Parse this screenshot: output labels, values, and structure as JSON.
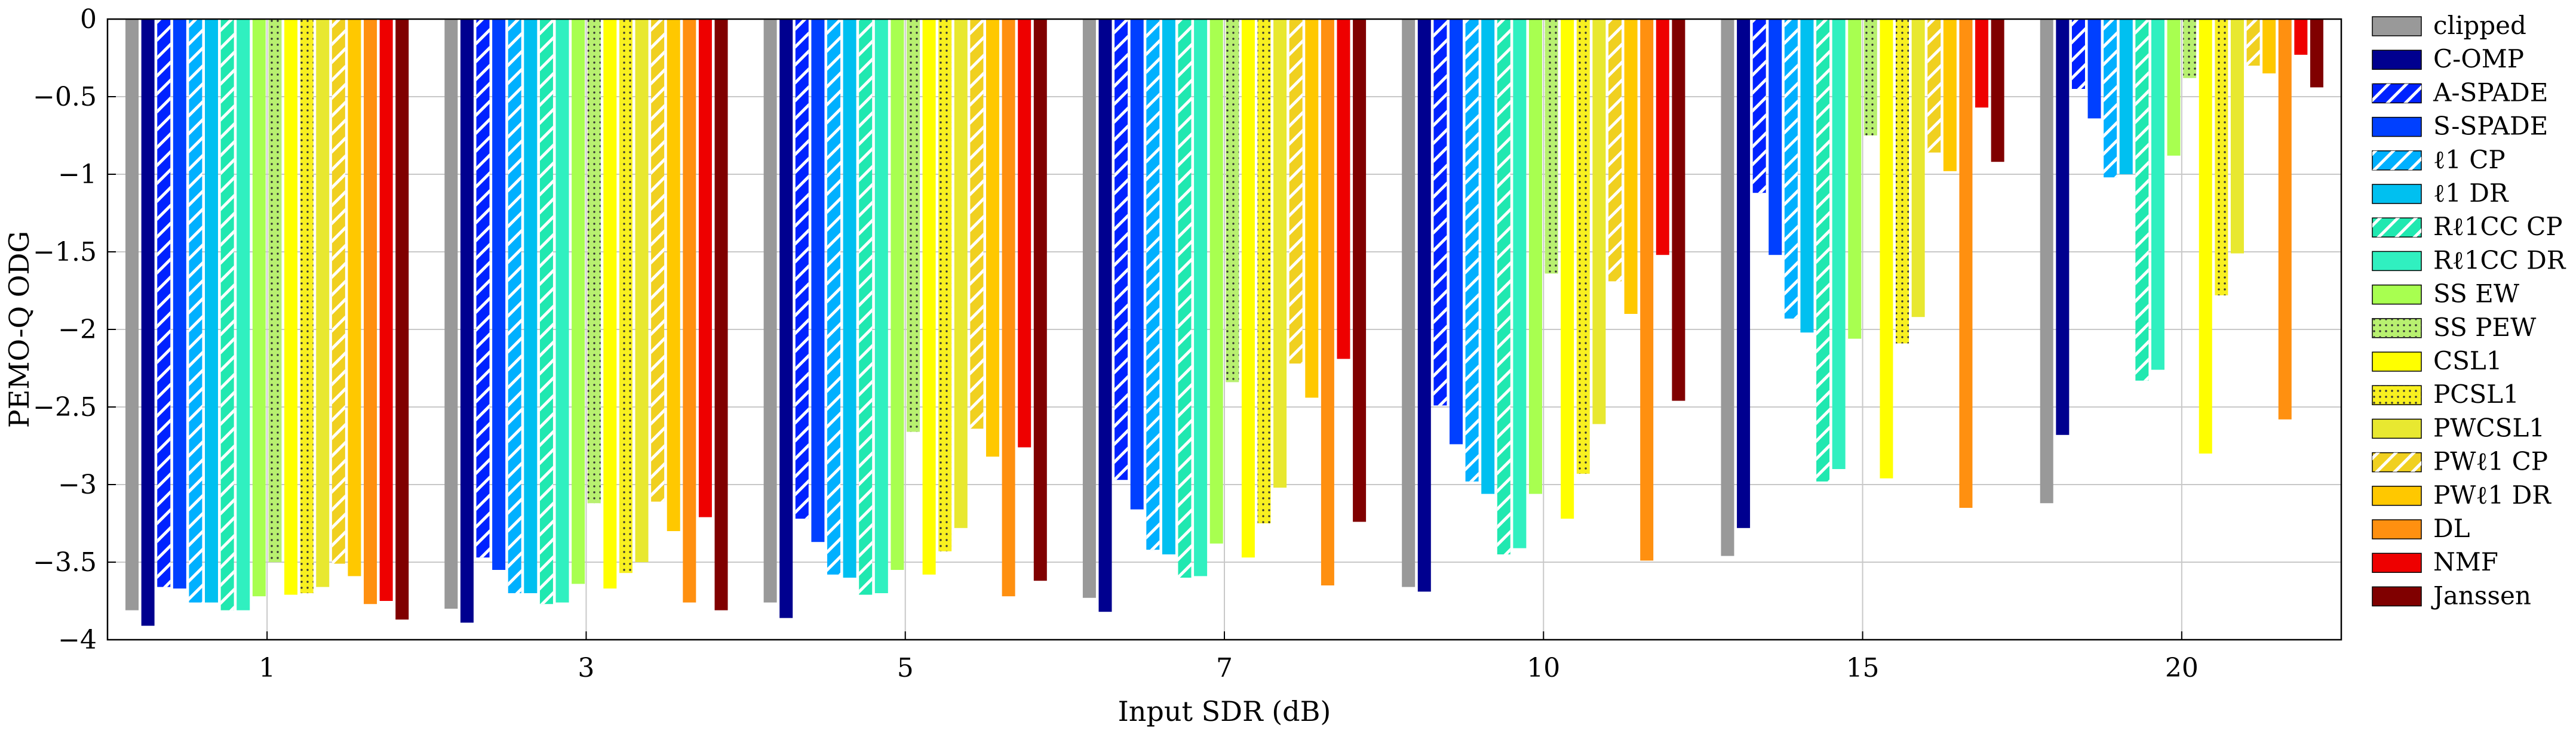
{
  "chart_data": {
    "type": "bar",
    "xlabel": "Input SDR (dB)",
    "ylabel": "PEMO-Q ODG",
    "ylim": [
      -4,
      0
    ],
    "yticks": [
      "0",
      "−0.5",
      "−1",
      "−1.5",
      "−2",
      "−2.5",
      "−3",
      "−3.5",
      "−4"
    ],
    "ytick_values": [
      0,
      -0.5,
      -1,
      -1.5,
      -2,
      -2.5,
      -3,
      -3.5,
      -4
    ],
    "categories": [
      "1",
      "3",
      "5",
      "7",
      "10",
      "15",
      "20"
    ],
    "grid": true,
    "legend_position": "right",
    "series": [
      {
        "name": "clipped",
        "color": "#999999",
        "hatch": "none",
        "values": [
          -3.81,
          -3.8,
          -3.76,
          -3.73,
          -3.66,
          -3.46,
          -3.12
        ]
      },
      {
        "name": "C-OMP",
        "color": "#00008f",
        "hatch": "none",
        "values": [
          -3.91,
          -3.89,
          -3.86,
          -3.82,
          -3.69,
          -3.28,
          -2.68
        ]
      },
      {
        "name": "A-SPADE",
        "color": "#0022ff",
        "hatch": "diag",
        "values": [
          -3.66,
          -3.47,
          -3.22,
          -2.97,
          -2.49,
          -1.12,
          -0.45
        ]
      },
      {
        "name": "S-SPADE",
        "color": "#0040ff",
        "hatch": "none",
        "values": [
          -3.67,
          -3.55,
          -3.37,
          -3.16,
          -2.74,
          -1.52,
          -0.64
        ]
      },
      {
        "name": "ℓ1 CP",
        "color": "#00b0ff",
        "hatch": "diag",
        "values": [
          -3.76,
          -3.7,
          -3.58,
          -3.42,
          -2.98,
          -1.93,
          -1.02
        ]
      },
      {
        "name": "ℓ1 DR",
        "color": "#00c0f0",
        "hatch": "none",
        "values": [
          -3.76,
          -3.7,
          -3.6,
          -3.45,
          -3.06,
          -2.02,
          -1.0
        ]
      },
      {
        "name": "Rℓ1CC CP",
        "color": "#20e8b0",
        "hatch": "diag",
        "values": [
          -3.81,
          -3.77,
          -3.71,
          -3.6,
          -3.45,
          -2.98,
          -2.33
        ]
      },
      {
        "name": "Rℓ1CC DR",
        "color": "#30f0c0",
        "hatch": "none",
        "values": [
          -3.81,
          -3.76,
          -3.7,
          -3.59,
          -3.41,
          -2.9,
          -2.26
        ]
      },
      {
        "name": "SS EW",
        "color": "#a8ff50",
        "hatch": "none",
        "values": [
          -3.72,
          -3.64,
          -3.55,
          -3.38,
          -3.06,
          -2.06,
          -0.88
        ]
      },
      {
        "name": "SS PEW",
        "color": "#b8f070",
        "hatch": "dots",
        "values": [
          -3.5,
          -3.12,
          -2.66,
          -2.34,
          -1.64,
          -0.75,
          -0.38
        ]
      },
      {
        "name": "CSL1",
        "color": "#ffff00",
        "hatch": "none",
        "values": [
          -3.71,
          -3.67,
          -3.58,
          -3.47,
          -3.22,
          -2.96,
          -2.8
        ]
      },
      {
        "name": "PCSL1",
        "color": "#f8f020",
        "hatch": "dots",
        "values": [
          -3.7,
          -3.57,
          -3.43,
          -3.25,
          -2.93,
          -2.09,
          -1.78
        ]
      },
      {
        "name": "PWCSL1",
        "color": "#e8e830",
        "hatch": "none",
        "values": [
          -3.66,
          -3.5,
          -3.28,
          -3.02,
          -2.61,
          -1.92,
          -1.51
        ]
      },
      {
        "name": "PWℓ1 CP",
        "color": "#f0d020",
        "hatch": "diag",
        "values": [
          -3.51,
          -3.11,
          -2.64,
          -2.22,
          -1.69,
          -0.86,
          -0.3
        ]
      },
      {
        "name": "PWℓ1 DR",
        "color": "#ffc800",
        "hatch": "none",
        "values": [
          -3.59,
          -3.3,
          -2.82,
          -2.44,
          -1.9,
          -0.98,
          -0.35
        ]
      },
      {
        "name": "DL",
        "color": "#ff9010",
        "hatch": "none",
        "values": [
          -3.77,
          -3.76,
          -3.72,
          -3.65,
          -3.49,
          -3.15,
          -2.58
        ]
      },
      {
        "name": "NMF",
        "color": "#ee0000",
        "hatch": "none",
        "values": [
          -3.75,
          -3.21,
          -2.76,
          -2.19,
          -1.52,
          -0.57,
          -0.23
        ]
      },
      {
        "name": "Janssen",
        "color": "#800000",
        "hatch": "none",
        "values": [
          -3.87,
          -3.81,
          -3.62,
          -3.24,
          -2.46,
          -0.92,
          -0.44
        ]
      }
    ]
  }
}
